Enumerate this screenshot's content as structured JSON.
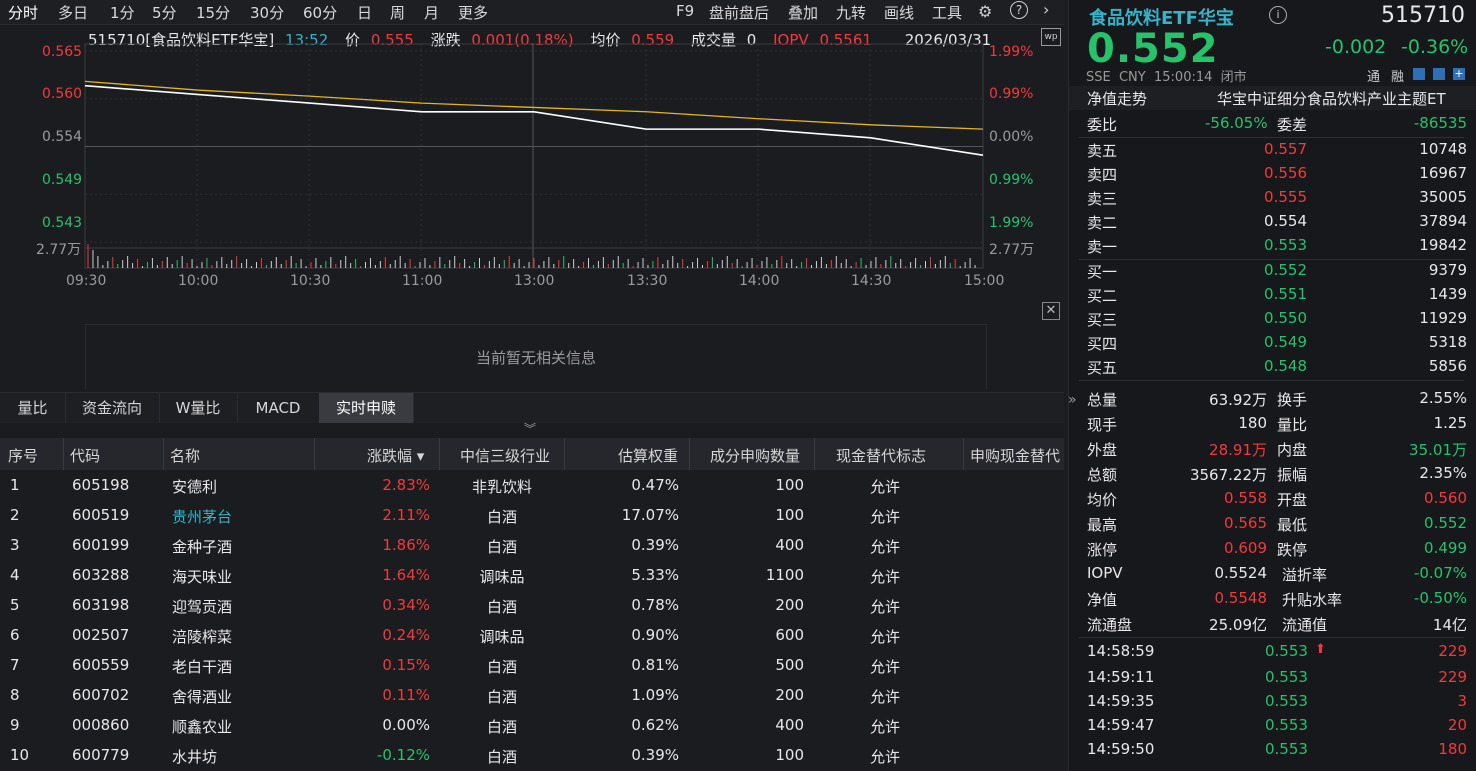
{
  "toolbar": {
    "left_tabs": [
      "分时",
      "多日",
      "1分",
      "5分",
      "15分",
      "30分",
      "60分",
      "日",
      "周",
      "月",
      "更多"
    ],
    "right_tabs": [
      "F9",
      "盘前盘后",
      "叠加",
      "九转",
      "画线",
      "工具"
    ]
  },
  "chart": {
    "code_name": "515710[食品饮料ETF华宝]",
    "time": "13:52",
    "price_label": "价",
    "price": "0.555",
    "change_label": "涨跌",
    "change": "0.001(0.18%)",
    "avg_label": "均价",
    "avg": "0.559",
    "vol_label": "成交量",
    "vol": "0",
    "iopv_label": "IOPV",
    "iopv": "0.5561",
    "date": "2026/03/31",
    "y_left": [
      "0.565",
      "0.560",
      "0.554",
      "0.549",
      "0.543"
    ],
    "y_right": [
      "1.99%",
      "0.99%",
      "0.00%",
      "0.99%",
      "1.99%"
    ],
    "vol_max": "2.77万",
    "x_ticks": [
      "09:30",
      "10:00",
      "10:30",
      "11:00",
      "13:00",
      "13:30",
      "14:00",
      "14:30",
      "15:00"
    ],
    "no_info": "当前暂无相关信息"
  },
  "chart_data": {
    "type": "line",
    "x": [
      "09:30",
      "10:00",
      "10:30",
      "11:00",
      "11:30/13:00",
      "13:30",
      "14:00",
      "14:30",
      "15:00"
    ],
    "series": [
      {
        "values": [
          0.561,
          0.56,
          0.559,
          0.558,
          0.558,
          0.556,
          0.556,
          0.555,
          0.553
        ]
      },
      {
        "values": [
          0.5615,
          0.5605,
          0.5598,
          0.559,
          0.5585,
          0.558,
          0.5572,
          0.5565,
          0.556
        ]
      }
    ],
    "ylim": [
      0.543,
      0.565
    ],
    "colors": [
      "#ffffff",
      "#e6b422"
    ]
  },
  "bottom_tabs": [
    "量比",
    "资金流向",
    "W量比",
    "MACD",
    "实时申赎"
  ],
  "table": {
    "headers": [
      "序号",
      "代码",
      "名称",
      "涨跌幅 ▾",
      "中信三级行业",
      "估算权重",
      "成分申购数量",
      "现金替代标志",
      "申购现金替代"
    ],
    "rows": [
      [
        "1",
        "605198",
        "安德利",
        "2.83%",
        "非乳饮料",
        "0.47%",
        "100",
        "允许"
      ],
      [
        "2",
        "600519",
        "贵州茅台",
        "2.11%",
        "白酒",
        "17.07%",
        "100",
        "允许"
      ],
      [
        "3",
        "600199",
        "金种子酒",
        "1.86%",
        "白酒",
        "0.39%",
        "400",
        "允许"
      ],
      [
        "4",
        "603288",
        "海天味业",
        "1.64%",
        "调味品",
        "5.33%",
        "1100",
        "允许"
      ],
      [
        "5",
        "603198",
        "迎驾贡酒",
        "0.34%",
        "白酒",
        "0.78%",
        "200",
        "允许"
      ],
      [
        "6",
        "002507",
        "涪陵榨菜",
        "0.24%",
        "调味品",
        "0.90%",
        "600",
        "允许"
      ],
      [
        "7",
        "600559",
        "老白干酒",
        "0.15%",
        "白酒",
        "0.81%",
        "500",
        "允许"
      ],
      [
        "8",
        "600702",
        "舍得酒业",
        "0.11%",
        "白酒",
        "1.09%",
        "200",
        "允许"
      ],
      [
        "9",
        "000860",
        "顺鑫农业",
        "0.00%",
        "白酒",
        "0.62%",
        "400",
        "允许"
      ],
      [
        "10",
        "600779",
        "水井坊",
        "-0.12%",
        "白酒",
        "0.39%",
        "100",
        "允许"
      ]
    ]
  },
  "quote": {
    "name": "食品饮料ETF华宝",
    "code": "515710",
    "price": "0.552",
    "change": "-0.002",
    "change_pct": "-0.36%",
    "exchange": "SSE",
    "currency": "CNY",
    "time": "15:00:14",
    "status": "闭市",
    "tag1": "通",
    "tag2": "融",
    "nav_trend_label": "净值走势",
    "index_name": "华宝中证细分食品饮料产业主题ET",
    "weibi_label": "委比",
    "weibi": "-56.05%",
    "weicha_label": "委差",
    "weicha": "-86535",
    "asks": [
      {
        "label": "卖五",
        "price": "0.557",
        "vol": "10748"
      },
      {
        "label": "卖四",
        "price": "0.556",
        "vol": "16967"
      },
      {
        "label": "卖三",
        "price": "0.555",
        "vol": "35005"
      },
      {
        "label": "卖二",
        "price": "0.554",
        "vol": "37894"
      },
      {
        "label": "卖一",
        "price": "0.553",
        "vol": "19842"
      }
    ],
    "bids": [
      {
        "label": "买一",
        "price": "0.552",
        "vol": "9379"
      },
      {
        "label": "买二",
        "price": "0.551",
        "vol": "1439"
      },
      {
        "label": "买三",
        "price": "0.550",
        "vol": "11929"
      },
      {
        "label": "买四",
        "price": "0.549",
        "vol": "5318"
      },
      {
        "label": "买五",
        "price": "0.548",
        "vol": "5856"
      }
    ],
    "stats": [
      [
        "总量",
        "63.92万",
        "换手",
        "2.55%"
      ],
      [
        "现手",
        "180",
        "量比",
        "1.25"
      ],
      [
        "外盘",
        "28.91万",
        "内盘",
        "35.01万"
      ],
      [
        "总额",
        "3567.22万",
        "振幅",
        "2.35%"
      ],
      [
        "均价",
        "0.558",
        "开盘",
        "0.560"
      ],
      [
        "最高",
        "0.565",
        "最低",
        "0.552"
      ],
      [
        "涨停",
        "0.609",
        "跌停",
        "0.499"
      ],
      [
        "IOPV",
        "0.5524",
        "溢折率",
        "-0.07%"
      ],
      [
        "净值",
        "0.5548",
        "升贴水率",
        "-0.50%"
      ],
      [
        "流通盘",
        "25.09亿",
        "流通值",
        "14亿"
      ]
    ],
    "ticks": [
      {
        "time": "14:58:59",
        "price": "0.553",
        "vol": "229"
      },
      {
        "time": "14:59:11",
        "price": "0.553",
        "vol": "229"
      },
      {
        "time": "14:59:35",
        "price": "0.553",
        "vol": "3"
      },
      {
        "time": "14:59:47",
        "price": "0.553",
        "vol": "20"
      },
      {
        "time": "14:59:50",
        "price": "0.553",
        "vol": "180"
      }
    ]
  }
}
